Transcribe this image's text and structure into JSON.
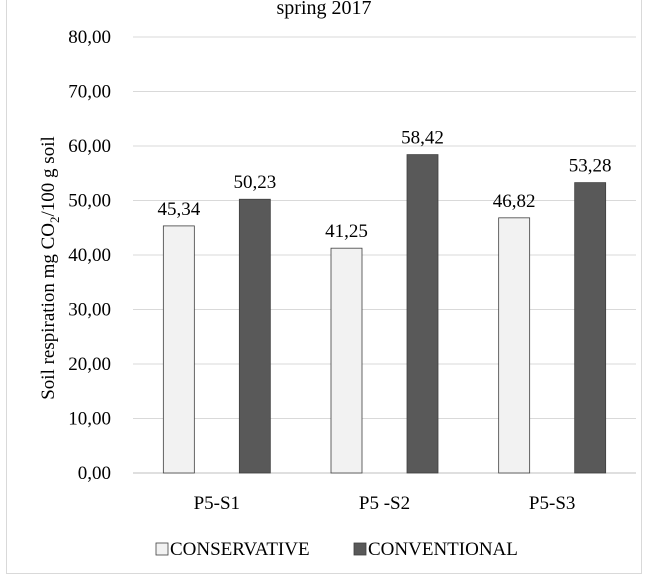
{
  "chart_data": {
    "type": "bar",
    "title": "spring 2017",
    "ylabel_parts": {
      "pre": "Soil respiration mg CO",
      "sub": "2",
      "post": "/100 g soil"
    },
    "categories": [
      "P5-S1",
      "P5 -S2",
      "P5-S3"
    ],
    "series": [
      {
        "name": "CONSERVATIVE",
        "color": "#f2f2f2",
        "values": [
          45.34,
          41.25,
          46.82
        ],
        "labels": [
          "45,34",
          "41,25",
          "46,82"
        ]
      },
      {
        "name": "CONVENTIONAL",
        "color": "#595959",
        "values": [
          50.23,
          58.42,
          53.28
        ],
        "labels": [
          "50,23",
          "58,42",
          "53,28"
        ]
      }
    ],
    "ylim": [
      0,
      80
    ],
    "yticks": [
      "0,00",
      "10,00",
      "20,00",
      "30,00",
      "40,00",
      "50,00",
      "60,00",
      "70,00",
      "80,00"
    ],
    "grid": true,
    "legend_position": "bottom"
  }
}
